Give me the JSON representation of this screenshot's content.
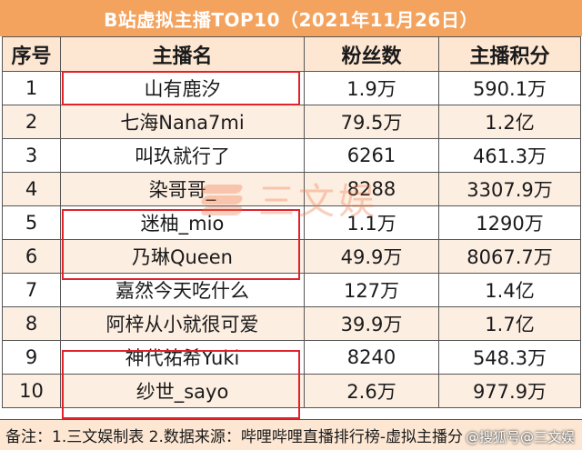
{
  "title": "B站虚拟主播TOP10（2021年11月26日）",
  "headers": {
    "rank": "序号",
    "name": "主播名",
    "fans": "粉丝数",
    "score": "主播积分"
  },
  "rows": [
    {
      "rank": "1",
      "name": "山有鹿汐",
      "fans": "1.9万",
      "score": "590.1万"
    },
    {
      "rank": "2",
      "name": "七海Nana7mi",
      "fans": "79.5万",
      "score": "1.2亿"
    },
    {
      "rank": "3",
      "name": "叫玖就行了",
      "fans": "6261",
      "score": "461.3万"
    },
    {
      "rank": "4",
      "name": "染哥哥_",
      "fans": "8288",
      "score": "3307.9万"
    },
    {
      "rank": "5",
      "name": "迷柚_mio",
      "fans": "1.1万",
      "score": "1290万"
    },
    {
      "rank": "6",
      "name": "乃琳Queen",
      "fans": "49.9万",
      "score": "8067.7万"
    },
    {
      "rank": "7",
      "name": "嘉然今天吃什么",
      "fans": "127万",
      "score": "1.4亿"
    },
    {
      "rank": "8",
      "name": "阿梓从小就很可爱",
      "fans": "39.9万",
      "score": "1.7亿"
    },
    {
      "rank": "9",
      "name": "神代祐希Yuki",
      "fans": "8240",
      "score": "548.3万"
    },
    {
      "rank": "10",
      "name": "纱世_sayo",
      "fans": "2.6万",
      "score": "977.9万"
    }
  ],
  "footer": "备注：1.三文娱制表 2.数据来源：哔哩哔哩直播排行榜-虚拟主播分",
  "watermark": "三文娱",
  "corner_watermark": "@搜狐号@三文娱",
  "colors": {
    "title_bg": "#f3a35e",
    "header_bg": "#fde7d3",
    "stripe_bg": "#fdeee2",
    "highlight": "#e0232a"
  }
}
